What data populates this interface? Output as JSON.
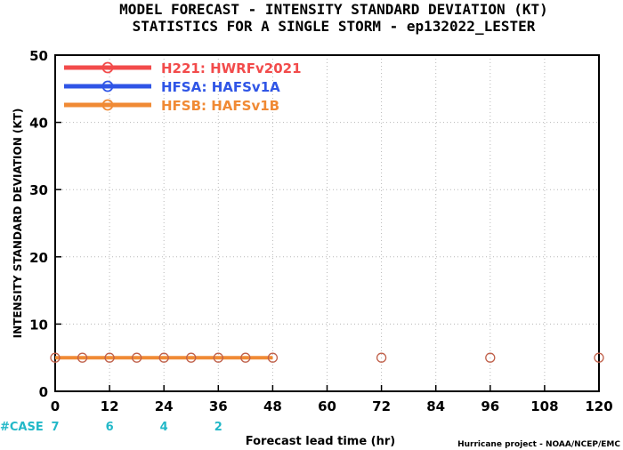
{
  "chart_data": {
    "type": "line",
    "title_line1": "MODEL FORECAST - INTENSITY STANDARD DEVIATION (KT)",
    "title_line2": "STATISTICS FOR A SINGLE STORM - ep132022_LESTER",
    "ylabel": "INTENSITY STANDARD DEVIATION (KT)",
    "xlabel": "Forecast lead time (hr)",
    "ylim": [
      0,
      50
    ],
    "xlim": [
      0,
      120
    ],
    "yticks": [
      "0",
      "10",
      "20",
      "30",
      "40",
      "50"
    ],
    "xticks": [
      "0",
      "12",
      "24",
      "36",
      "48",
      "60",
      "72",
      "84",
      "96",
      "108",
      "120"
    ],
    "grid": true,
    "legend_position": "top-left",
    "series": [
      {
        "name": "H221: HWRFv2021",
        "color": "#f24b4b",
        "x": [],
        "y": []
      },
      {
        "name": "HFSA: HAFSv1A",
        "color": "#2f55e6",
        "x": [],
        "y": []
      },
      {
        "name": "HFSB: HAFSv1B",
        "color": "#f08a35",
        "x": [
          0,
          6,
          12,
          18,
          24,
          30,
          36,
          42,
          48
        ],
        "y": [
          5,
          5,
          5,
          5,
          5,
          5,
          5,
          5,
          5
        ]
      }
    ],
    "extra_markers": {
      "color": "#c0604a",
      "x": [
        0,
        6,
        12,
        18,
        24,
        30,
        36,
        42,
        48,
        72,
        96,
        120
      ],
      "y": [
        5,
        5,
        5,
        5,
        5,
        5,
        5,
        5,
        5,
        5,
        5,
        5
      ]
    },
    "case_label": "#CASE",
    "case_counts": [
      {
        "x": 0,
        "n": "7"
      },
      {
        "x": 12,
        "n": "6"
      },
      {
        "x": 24,
        "n": "4"
      },
      {
        "x": 36,
        "n": "2"
      }
    ],
    "credit": "Hurricane project - NOAA/NCEP/EMC"
  }
}
